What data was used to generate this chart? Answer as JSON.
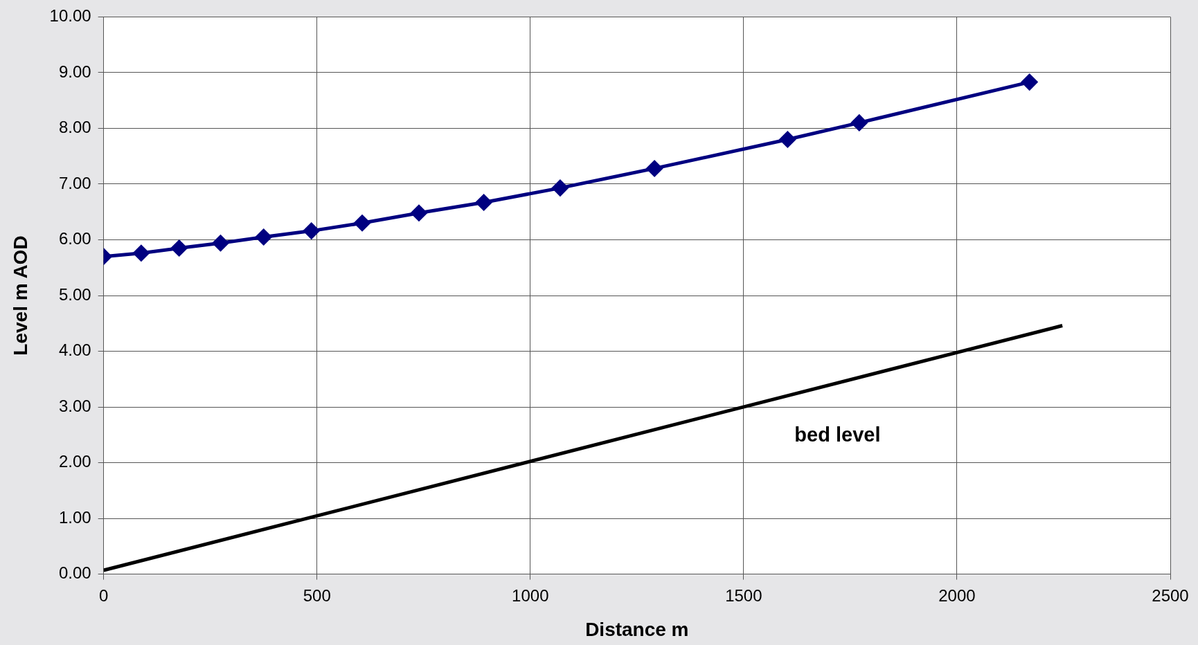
{
  "chart_data": {
    "type": "line",
    "xlabel": "Distance m",
    "ylabel": "Level m AOD",
    "xlim": [
      0,
      2500
    ],
    "xticks": [
      0,
      500,
      1000,
      1500,
      2000,
      2500
    ],
    "ylim": [
      0,
      10
    ],
    "yticks": [
      {
        "value": 0,
        "label": "0.00"
      },
      {
        "value": 1,
        "label": "1.00"
      },
      {
        "value": 2,
        "label": "2.00"
      },
      {
        "value": 3,
        "label": "3.00"
      },
      {
        "value": 4,
        "label": "4.00"
      },
      {
        "value": 5,
        "label": "5.00"
      },
      {
        "value": 6,
        "label": "6.00"
      },
      {
        "value": 7,
        "label": "7.00"
      },
      {
        "value": 8,
        "label": "8.00"
      },
      {
        "value": 9,
        "label": "9.00"
      },
      {
        "value": 10,
        "label": "10.00"
      }
    ],
    "grid": true,
    "legend": false,
    "series": [
      {
        "color": "#000080",
        "marker": "diamond",
        "x": [
          0,
          88,
          177,
          274,
          375,
          487,
          606,
          739,
          891,
          1070,
          1291,
          1603,
          1771,
          2170
        ],
        "values": [
          5.7,
          5.76,
          5.85,
          5.94,
          6.05,
          6.16,
          6.3,
          6.48,
          6.67,
          6.93,
          7.28,
          7.8,
          8.1,
          8.83
        ]
      },
      {
        "color": "#000000",
        "marker": "none",
        "x": [
          0,
          2247
        ],
        "values": [
          0.07,
          4.46
        ]
      }
    ],
    "annotations": [
      "bed level"
    ]
  }
}
